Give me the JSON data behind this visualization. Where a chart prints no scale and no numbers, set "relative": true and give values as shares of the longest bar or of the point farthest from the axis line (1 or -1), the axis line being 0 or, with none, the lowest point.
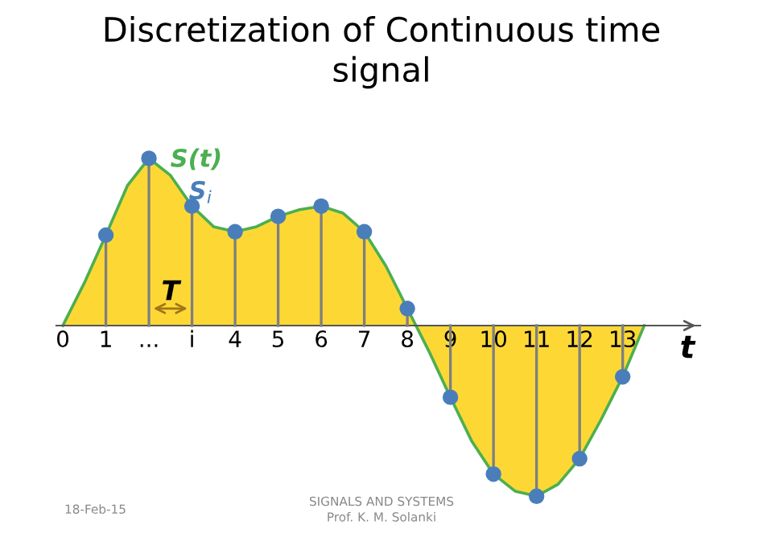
{
  "chart_data": {
    "type": "area",
    "title": "Discretization of Continuous time\nsignal",
    "xlabel": "t",
    "relative": true,
    "xlim": [
      -0.15,
      14.8
    ],
    "xticks": [
      {
        "value": 0,
        "label": "0"
      },
      {
        "value": 1,
        "label": "1"
      },
      {
        "value": 2,
        "label": "..."
      },
      {
        "value": 3,
        "label": "i"
      },
      {
        "value": 4,
        "label": "4"
      },
      {
        "value": 5,
        "label": "5"
      },
      {
        "value": 6,
        "label": "6"
      },
      {
        "value": 7,
        "label": "7"
      },
      {
        "value": 8,
        "label": "8"
      },
      {
        "value": 9,
        "label": "9"
      },
      {
        "value": 10,
        "label": "10"
      },
      {
        "value": 11,
        "label": "11"
      },
      {
        "value": 12,
        "label": "12"
      },
      {
        "value": 13,
        "label": "13"
      }
    ],
    "series": [
      {
        "name": "S(t)",
        "color": "#fdd835",
        "x": [
          0,
          0.5,
          1,
          1.5,
          2,
          2.5,
          3,
          3.5,
          4,
          4.5,
          5,
          5.5,
          6,
          6.5,
          7,
          7.5,
          8,
          8.2,
          8.5,
          9,
          9.5,
          10,
          10.5,
          11,
          11.5,
          12,
          12.5,
          13,
          13.5
        ],
        "values": [
          0,
          0.25,
          0.53,
          0.82,
          0.98,
          0.88,
          0.7,
          0.58,
          0.55,
          0.58,
          0.64,
          0.68,
          0.7,
          0.66,
          0.55,
          0.35,
          0.1,
          0,
          -0.15,
          -0.42,
          -0.68,
          -0.87,
          -0.97,
          -1.0,
          -0.93,
          -0.78,
          -0.55,
          -0.3,
          0
        ]
      },
      {
        "type": "lollipop",
        "name": "S$_{i}$",
        "color": "#4a7ebb",
        "marker": "circle",
        "x": [
          1,
          2,
          3,
          4,
          5,
          6,
          7,
          8,
          9,
          10,
          11,
          12,
          13
        ],
        "values": [
          0.53,
          0.98,
          0.7,
          0.55,
          0.64,
          0.7,
          0.55,
          0.1,
          -0.42,
          -0.87,
          -1.0,
          -0.78,
          -0.3
        ]
      }
    ],
    "annotations": [
      "T",
      "18-Feb-15",
      "SIGNALS AND SYSTEMS\nProf. K. M. Solanki"
    ],
    "legend": false
  }
}
